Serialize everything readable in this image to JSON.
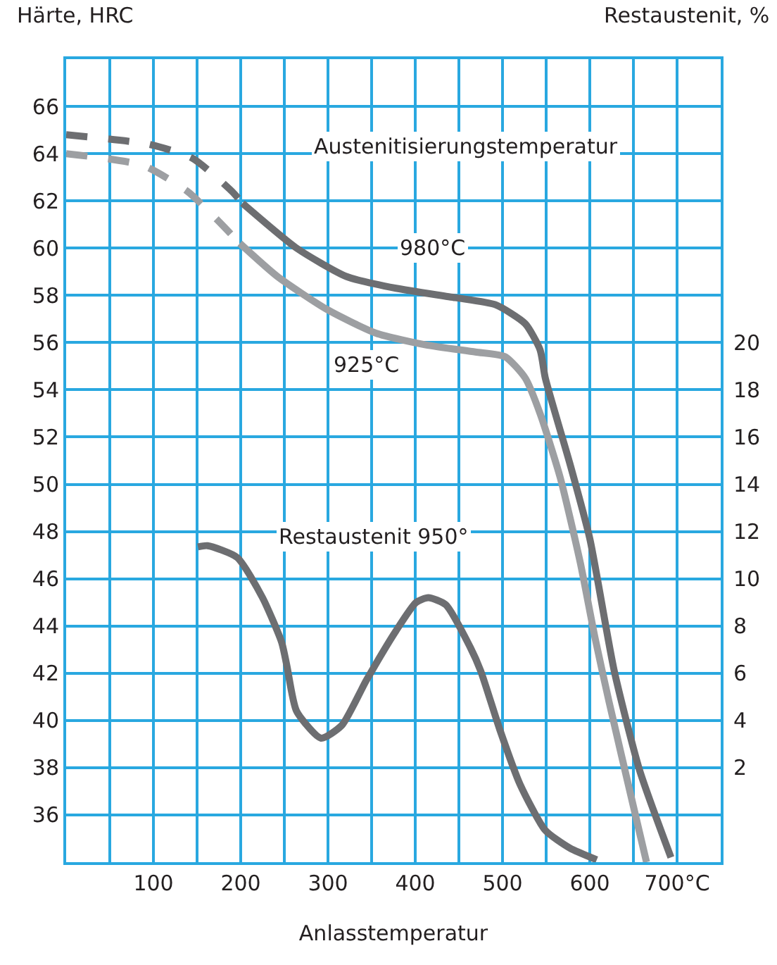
{
  "chart_data": {
    "type": "line",
    "xlabel": "Anlasstemperatur",
    "ylabel": "Härte, HRC",
    "y2label": "Restaustenit, %",
    "annotations": [
      "Austenitisierungstemperatur",
      "980°C",
      "925°C",
      "Restaustenit 950°"
    ],
    "xlim": [
      0,
      750
    ],
    "xticks": [
      {
        "value": 50,
        "label": null
      },
      100,
      {
        "value": 150,
        "label": null
      },
      200,
      {
        "value": 250,
        "label": null
      },
      300,
      {
        "value": 350,
        "label": null
      },
      400,
      {
        "value": 450,
        "label": null
      },
      500,
      {
        "value": 550,
        "label": null
      },
      600,
      {
        "value": 650,
        "label": null
      },
      {
        "value": 700,
        "label": "700°C"
      }
    ],
    "ylim": [
      34,
      68
    ],
    "yticks": [
      36,
      38,
      40,
      42,
      44,
      46,
      48,
      50,
      52,
      54,
      56,
      58,
      60,
      62,
      64,
      66
    ],
    "y2lim": [
      -2,
      32
    ],
    "y2ticks": [
      2,
      4,
      6,
      8,
      10,
      12,
      14,
      16,
      18,
      20
    ],
    "grid": true,
    "marker": "none",
    "series": [
      {
        "color": "#6d6e71",
        "line_style": "dashed",
        "x": [
          0,
          94,
          145,
          190,
          202
        ],
        "values": [
          64.8,
          64.4,
          63.8,
          62.4,
          61.9
        ]
      },
      {
        "color": "#6d6e71",
        "line_style": "solid",
        "x": [
          202,
          264,
          321,
          378,
          446,
          492,
          526,
          543,
          549,
          577,
          600,
          628,
          657,
          693
        ],
        "values": [
          61.9,
          60.0,
          58.8,
          58.3,
          57.9,
          57.6,
          56.8,
          55.7,
          54.5,
          50.9,
          47.7,
          42.1,
          37.9,
          34.2
        ]
      },
      {
        "color": "#9d9fa2",
        "line_style": "dashed",
        "x": [
          0,
          88,
          139,
          173,
          199
        ],
        "values": [
          64.0,
          63.5,
          62.4,
          61.2,
          60.2
        ]
      },
      {
        "color": "#9d9fa2",
        "line_style": "solid",
        "x": [
          199,
          242,
          299,
          355,
          412,
          469,
          503,
          526,
          543,
          566,
          589,
          606,
          622,
          651,
          665
        ],
        "values": [
          60.2,
          58.8,
          57.4,
          56.4,
          55.9,
          55.6,
          55.4,
          54.5,
          53.0,
          50.3,
          46.7,
          43.5,
          40.8,
          36.2,
          34.0
        ]
      },
      {
        "color": "#6d6e71",
        "line_style": "solid",
        "axis": "y2",
        "x": [
          151,
          162,
          196,
          225,
          247,
          253,
          264,
          292,
          316,
          344,
          378,
          401,
          415,
          435,
          463,
          475,
          497,
          520,
          549,
          577,
          608
        ],
        "values": [
          11.35,
          11.4,
          10.9,
          9.2,
          7.3,
          6.3,
          4.4,
          3.25,
          3.8,
          5.7,
          7.8,
          9.0,
          9.2,
          8.9,
          7.1,
          6.1,
          3.6,
          1.3,
          -0.65,
          -1.4,
          -1.9
        ]
      }
    ]
  }
}
